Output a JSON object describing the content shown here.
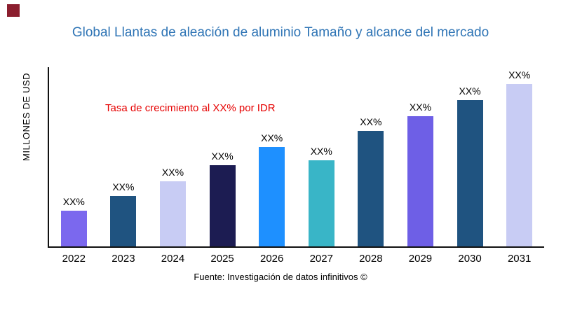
{
  "branding": {
    "corner_square_color": "#8B1E2E"
  },
  "header": {
    "title": "Global Llantas de aleación de aluminio Tamaño y alcance del mercado",
    "title_color": "#2E74B5"
  },
  "annotation": {
    "text": "Tasa de crecimiento al XX% por IDR",
    "color": "#E60000"
  },
  "footer": {
    "source": "Fuente: Investigación de datos infinitivos ©"
  },
  "chart_data": {
    "type": "bar",
    "title": "Global Llantas de aleación de aluminio Tamaño y alcance del mercado",
    "xlabel": "",
    "ylabel": "MILLONES DE USD",
    "categories": [
      "2022",
      "2023",
      "2024",
      "2025",
      "2026",
      "2027",
      "2028",
      "2029",
      "2030",
      "2031"
    ],
    "values": [
      22,
      31,
      40,
      50,
      61,
      53,
      71,
      80,
      90,
      100
    ],
    "values_are_relative_estimates": true,
    "bar_labels": [
      "XX%",
      "XX%",
      "XX%",
      "XX%",
      "XX%",
      "XX%",
      "XX%",
      "XX%",
      "XX%",
      "XX%"
    ],
    "bar_colors": [
      "#7B68EE",
      "#1F5380",
      "#C8CCF4",
      "#1C1C52",
      "#1E90FF",
      "#39B5C7",
      "#1F5380",
      "#6E5FE6",
      "#1F5380",
      "#C8CCF4"
    ],
    "ylim": [
      0,
      100
    ],
    "grid": false,
    "legend": false,
    "axis_color": "#111111"
  }
}
